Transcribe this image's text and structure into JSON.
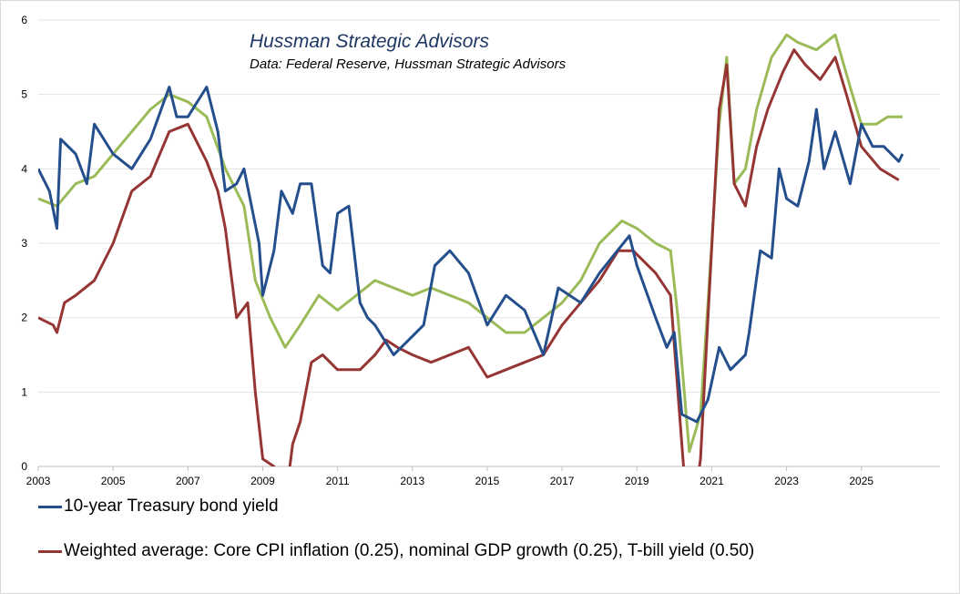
{
  "chart_data": {
    "type": "line",
    "title": "Hussman Strategic Advisors",
    "subtitle": "Data: Federal Reserve, Hussman Strategic Advisors",
    "xlabel": "",
    "ylabel": "",
    "xlim": [
      2003,
      2027.1
    ],
    "ylim": [
      0,
      6
    ],
    "x_ticks": [
      "2003",
      "2005",
      "2007",
      "2009",
      "2011",
      "2013",
      "2015",
      "2017",
      "2019",
      "2021",
      "2023",
      "2025"
    ],
    "y_ticks": [
      "0",
      "1",
      "2",
      "3",
      "4",
      "5",
      "6"
    ],
    "grid": "horizontal",
    "legend_placement": "bottom",
    "series": [
      {
        "name": "10-year Treasury bond yield",
        "color": "#254f8c",
        "points": [
          [
            2003.0,
            4.0
          ],
          [
            2003.3,
            3.7
          ],
          [
            2003.5,
            3.2
          ],
          [
            2003.6,
            4.4
          ],
          [
            2004.0,
            4.2
          ],
          [
            2004.3,
            3.8
          ],
          [
            2004.5,
            4.6
          ],
          [
            2005.0,
            4.2
          ],
          [
            2005.5,
            4.0
          ],
          [
            2006.0,
            4.4
          ],
          [
            2006.5,
            5.1
          ],
          [
            2006.7,
            4.7
          ],
          [
            2007.0,
            4.7
          ],
          [
            2007.5,
            5.1
          ],
          [
            2007.8,
            4.5
          ],
          [
            2008.0,
            3.7
          ],
          [
            2008.3,
            3.8
          ],
          [
            2008.5,
            4.0
          ],
          [
            2008.9,
            3.0
          ],
          [
            2009.0,
            2.3
          ],
          [
            2009.3,
            2.9
          ],
          [
            2009.5,
            3.7
          ],
          [
            2009.8,
            3.4
          ],
          [
            2010.0,
            3.8
          ],
          [
            2010.3,
            3.8
          ],
          [
            2010.6,
            2.7
          ],
          [
            2010.8,
            2.6
          ],
          [
            2011.0,
            3.4
          ],
          [
            2011.3,
            3.5
          ],
          [
            2011.6,
            2.2
          ],
          [
            2011.8,
            2.0
          ],
          [
            2012.0,
            1.9
          ],
          [
            2012.5,
            1.5
          ],
          [
            2012.9,
            1.7
          ],
          [
            2013.3,
            1.9
          ],
          [
            2013.6,
            2.7
          ],
          [
            2014.0,
            2.9
          ],
          [
            2014.5,
            2.6
          ],
          [
            2015.0,
            1.9
          ],
          [
            2015.5,
            2.3
          ],
          [
            2016.0,
            2.1
          ],
          [
            2016.5,
            1.5
          ],
          [
            2016.9,
            2.4
          ],
          [
            2017.5,
            2.2
          ],
          [
            2018.0,
            2.6
          ],
          [
            2018.8,
            3.1
          ],
          [
            2019.0,
            2.7
          ],
          [
            2019.5,
            2.0
          ],
          [
            2019.8,
            1.6
          ],
          [
            2020.0,
            1.8
          ],
          [
            2020.2,
            0.7
          ],
          [
            2020.6,
            0.6
          ],
          [
            2020.9,
            0.9
          ],
          [
            2021.2,
            1.6
          ],
          [
            2021.5,
            1.3
          ],
          [
            2021.9,
            1.5
          ],
          [
            2022.0,
            1.8
          ],
          [
            2022.3,
            2.9
          ],
          [
            2022.6,
            2.8
          ],
          [
            2022.8,
            4.0
          ],
          [
            2023.0,
            3.6
          ],
          [
            2023.3,
            3.5
          ],
          [
            2023.6,
            4.1
          ],
          [
            2023.8,
            4.8
          ],
          [
            2024.0,
            4.0
          ],
          [
            2024.3,
            4.5
          ],
          [
            2024.7,
            3.8
          ],
          [
            2025.0,
            4.6
          ],
          [
            2025.3,
            4.3
          ],
          [
            2025.6,
            4.3
          ],
          [
            2026.0,
            4.1
          ],
          [
            2026.1,
            4.2
          ]
        ]
      },
      {
        "name": "Weighted average: Core CPI inflation (0.25), nominal GDP growth (0.25), T-bill yield (0.50)",
        "color": "#963634",
        "points": [
          [
            2003.0,
            2.0
          ],
          [
            2003.4,
            1.9
          ],
          [
            2003.5,
            1.8
          ],
          [
            2003.7,
            2.2
          ],
          [
            2004.0,
            2.3
          ],
          [
            2004.5,
            2.5
          ],
          [
            2005.0,
            3.0
          ],
          [
            2005.5,
            3.7
          ],
          [
            2006.0,
            3.9
          ],
          [
            2006.5,
            4.5
          ],
          [
            2007.0,
            4.6
          ],
          [
            2007.5,
            4.1
          ],
          [
            2007.8,
            3.7
          ],
          [
            2008.0,
            3.2
          ],
          [
            2008.3,
            2.0
          ],
          [
            2008.6,
            2.2
          ],
          [
            2008.8,
            1.0
          ],
          [
            2009.0,
            0.1
          ],
          [
            2009.3,
            0.0
          ],
          [
            2009.6,
            -0.5
          ],
          [
            2009.8,
            0.3
          ],
          [
            2010.0,
            0.6
          ],
          [
            2010.3,
            1.4
          ],
          [
            2010.6,
            1.5
          ],
          [
            2011.0,
            1.3
          ],
          [
            2011.6,
            1.3
          ],
          [
            2012.0,
            1.5
          ],
          [
            2012.3,
            1.7
          ],
          [
            2012.6,
            1.6
          ],
          [
            2013.0,
            1.5
          ],
          [
            2013.5,
            1.4
          ],
          [
            2014.0,
            1.5
          ],
          [
            2014.5,
            1.6
          ],
          [
            2015.0,
            1.2
          ],
          [
            2015.5,
            1.3
          ],
          [
            2016.0,
            1.4
          ],
          [
            2016.5,
            1.5
          ],
          [
            2017.0,
            1.9
          ],
          [
            2017.5,
            2.2
          ],
          [
            2018.0,
            2.5
          ],
          [
            2018.5,
            2.9
          ],
          [
            2018.9,
            2.9
          ],
          [
            2019.5,
            2.6
          ],
          [
            2019.9,
            2.3
          ],
          [
            2020.2,
            0.3
          ],
          [
            2020.4,
            -1.0
          ],
          [
            2020.7,
            0.1
          ],
          [
            2020.9,
            2.0
          ],
          [
            2021.2,
            4.8
          ],
          [
            2021.4,
            5.4
          ],
          [
            2021.6,
            3.8
          ],
          [
            2021.9,
            3.5
          ],
          [
            2022.2,
            4.3
          ],
          [
            2022.5,
            4.8
          ],
          [
            2022.9,
            5.3
          ],
          [
            2023.2,
            5.6
          ],
          [
            2023.5,
            5.4
          ],
          [
            2023.9,
            5.2
          ],
          [
            2024.3,
            5.5
          ],
          [
            2024.6,
            5.0
          ],
          [
            2025.0,
            4.3
          ],
          [
            2025.5,
            4.0
          ],
          [
            2026.0,
            3.85
          ]
        ]
      },
      {
        "color": "#9bbb59",
        "points": [
          [
            2003.0,
            3.6
          ],
          [
            2003.5,
            3.5
          ],
          [
            2004.0,
            3.8
          ],
          [
            2004.5,
            3.9
          ],
          [
            2005.0,
            4.2
          ],
          [
            2005.5,
            4.5
          ],
          [
            2006.0,
            4.8
          ],
          [
            2006.5,
            5.0
          ],
          [
            2007.0,
            4.9
          ],
          [
            2007.5,
            4.7
          ],
          [
            2008.0,
            4.0
          ],
          [
            2008.5,
            3.5
          ],
          [
            2008.8,
            2.5
          ],
          [
            2009.2,
            2.0
          ],
          [
            2009.6,
            1.6
          ],
          [
            2010.0,
            1.9
          ],
          [
            2010.5,
            2.3
          ],
          [
            2011.0,
            2.1
          ],
          [
            2011.5,
            2.3
          ],
          [
            2012.0,
            2.5
          ],
          [
            2012.5,
            2.4
          ],
          [
            2013.0,
            2.3
          ],
          [
            2013.5,
            2.4
          ],
          [
            2014.0,
            2.3
          ],
          [
            2014.5,
            2.2
          ],
          [
            2015.0,
            2.0
          ],
          [
            2015.5,
            1.8
          ],
          [
            2016.0,
            1.8
          ],
          [
            2016.5,
            2.0
          ],
          [
            2017.0,
            2.2
          ],
          [
            2017.5,
            2.5
          ],
          [
            2018.0,
            3.0
          ],
          [
            2018.6,
            3.3
          ],
          [
            2019.0,
            3.2
          ],
          [
            2019.5,
            3.0
          ],
          [
            2019.9,
            2.9
          ],
          [
            2020.1,
            2.0
          ],
          [
            2020.4,
            0.2
          ],
          [
            2020.7,
            0.7
          ],
          [
            2020.9,
            2.2
          ],
          [
            2021.2,
            4.6
          ],
          [
            2021.4,
            5.5
          ],
          [
            2021.6,
            3.8
          ],
          [
            2021.9,
            4.0
          ],
          [
            2022.2,
            4.8
          ],
          [
            2022.6,
            5.5
          ],
          [
            2023.0,
            5.8
          ],
          [
            2023.3,
            5.7
          ],
          [
            2023.8,
            5.6
          ],
          [
            2024.3,
            5.8
          ],
          [
            2024.7,
            5.1
          ],
          [
            2025.0,
            4.6
          ],
          [
            2025.4,
            4.6
          ],
          [
            2025.7,
            4.7
          ],
          [
            2026.1,
            4.7
          ]
        ]
      }
    ]
  }
}
